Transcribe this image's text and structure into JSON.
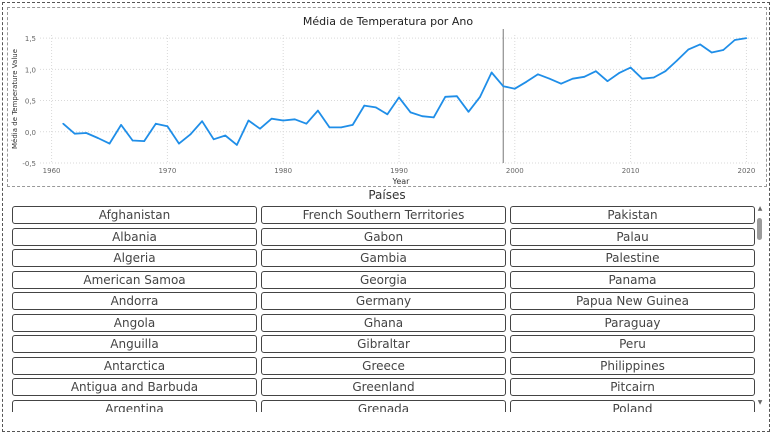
{
  "chart_data": {
    "type": "line",
    "title": "Média de Temperatura por Ano",
    "xlabel": "Year",
    "ylabel": "Média de Temperature Value",
    "x_ticks": [
      1960,
      1970,
      1980,
      1990,
      2000,
      2010,
      2020
    ],
    "y_ticks": [
      -0.5,
      0.0,
      0.5,
      1.0,
      1.5
    ],
    "y_tick_labels": [
      "-0,5",
      "0,0",
      "0,5",
      "1,0",
      "1,5"
    ],
    "xlim": [
      1959,
      2021
    ],
    "ylim": [
      -0.5,
      1.55
    ],
    "grid": true,
    "line_color": "#1f8ee8",
    "reference_line_x": 1999,
    "series": [
      {
        "x": [
          1961,
          1962,
          1963,
          1964,
          1965,
          1966,
          1967,
          1968,
          1969,
          1970,
          1971,
          1972,
          1973,
          1974,
          1975,
          1976,
          1977,
          1978,
          1979,
          1980,
          1981,
          1982,
          1983,
          1984,
          1985,
          1986,
          1987,
          1988,
          1989,
          1990,
          1991,
          1992,
          1993,
          1994,
          1995,
          1996,
          1997,
          1998,
          1999,
          2000,
          2001,
          2002,
          2003,
          2004,
          2005,
          2006,
          2007,
          2008,
          2009,
          2010,
          2011,
          2012,
          2013,
          2014,
          2015,
          2016,
          2017,
          2018,
          2019,
          2020
        ],
        "values": [
          0.13,
          -0.03,
          -0.02,
          -0.1,
          -0.19,
          0.11,
          -0.14,
          -0.15,
          0.13,
          0.09,
          -0.19,
          -0.04,
          0.17,
          -0.12,
          -0.06,
          -0.21,
          0.18,
          0.05,
          0.21,
          0.18,
          0.2,
          0.13,
          0.34,
          0.07,
          0.07,
          0.11,
          0.42,
          0.39,
          0.28,
          0.55,
          0.31,
          0.25,
          0.23,
          0.56,
          0.57,
          0.32,
          0.56,
          0.95,
          0.73,
          0.69,
          0.8,
          0.92,
          0.85,
          0.77,
          0.85,
          0.88,
          0.97,
          0.81,
          0.94,
          1.03,
          0.85,
          0.87,
          0.97,
          1.14,
          1.32,
          1.4,
          1.27,
          1.31,
          1.47,
          1.5
        ]
      }
    ]
  },
  "slicer": {
    "title": "Países",
    "columns": [
      [
        "Afghanistan",
        "Albania",
        "Algeria",
        "American Samoa",
        "Andorra",
        "Angola",
        "Anguilla",
        "Antarctica",
        "Antigua and Barbuda",
        "Argentina"
      ],
      [
        "French Southern Territories",
        "Gabon",
        "Gambia",
        "Georgia",
        "Germany",
        "Ghana",
        "Gibraltar",
        "Greece",
        "Greenland",
        "Grenada"
      ],
      [
        "Pakistan",
        "Palau",
        "Palestine",
        "Panama",
        "Papua New Guinea",
        "Paraguay",
        "Peru",
        "Philippines",
        "Pitcairn",
        "Poland"
      ]
    ]
  },
  "scrollbar": {
    "up_icon": "scroll-up-arrow-icon",
    "down_icon": "scroll-down-arrow-icon"
  }
}
